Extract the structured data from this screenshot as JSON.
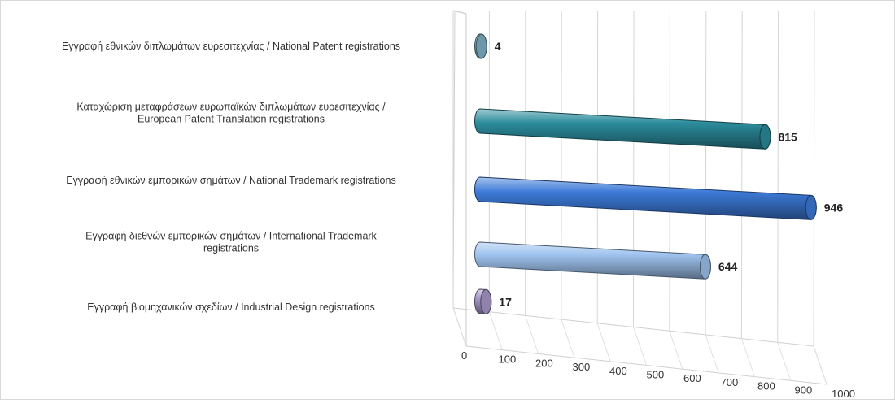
{
  "chart_data": {
    "type": "bar",
    "orientation": "horizontal",
    "style": "3d-cylinder",
    "categories": [
      "Εγγραφή εθνικών διπλωμάτων ευρεσιτεχνίας / National Patent registrations",
      "Καταχώριση μεταφράσεων ευρωπαϊκών διπλωμάτων ευρεσιτεχνίας / European Patent Translation registrations",
      "Εγγραφή εθνικών εμπορικών σημάτων / National Trademark registrations",
      "Εγγραφή διεθνών εμπορικών σημάτων / International Trademark registrations",
      "Εγγραφή βιομηχανικών σχεδίων / Industrial Design registrations"
    ],
    "category_lines": [
      [
        "Εγγραφή  εθνικών διπλωμάτων ευρεσιτεχνίας / National Patent registrations"
      ],
      [
        "Καταχώριση μεταφράσεων ευρωπαϊκών διπλωμάτων ευρεσιτεχνίας /",
        "European Patent Translation registrations"
      ],
      [
        "Εγγραφή  εθνικών εμπορικών σημάτων / National Trademark registrations"
      ],
      [
        "Εγγραφή  διεθνών εμπορικών σημάτων / International Trademark",
        "registrations"
      ],
      [
        "Εγγραφή  βιομηχανικών σχεδίων / Industrial Design registrations"
      ]
    ],
    "values": [
      4,
      815,
      946,
      644,
      17
    ],
    "value_labels": [
      "4",
      "815",
      "946",
      "644",
      "17"
    ],
    "colors": [
      "#7fb3c8",
      "#2b8c9c",
      "#3c7ad8",
      "#9ec2ee",
      "#a99ac9"
    ],
    "xlim": [
      0,
      1000
    ],
    "x_ticks": [
      0,
      100,
      200,
      300,
      400,
      500,
      600,
      700,
      800,
      900,
      1000
    ],
    "x_tick_labels": [
      "0",
      "100",
      "200",
      "300",
      "400",
      "500",
      "600",
      "700",
      "800",
      "900",
      "1000"
    ],
    "grid": true,
    "legend": "none",
    "title": "",
    "xlabel": "",
    "ylabel": ""
  }
}
